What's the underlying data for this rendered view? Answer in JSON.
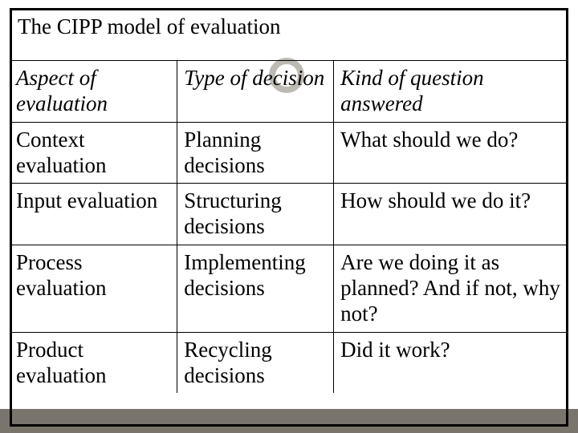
{
  "slide": {
    "title": "The CIPP model of evaluation",
    "title_fontsize": 27,
    "body_fontsize": 27,
    "text_color": "#000000",
    "background_color": "#ffffff",
    "bottom_strip_color": "#7a756c",
    "outer_border_color": "#000000",
    "outer_border_width": 3,
    "ring_color": "#bdbab4",
    "ring_stroke": 8,
    "col_widths_pct": [
      30,
      28,
      42
    ]
  },
  "table": {
    "type": "table",
    "columns": [
      "Aspect of evaluation",
      "Type of decision",
      "Kind of question answered"
    ],
    "rows": [
      [
        "Context evaluation",
        "Planning decisions",
        "What should we do?"
      ],
      [
        "Input evaluation",
        "Structuring decisions",
        "How should we do it?"
      ],
      [
        "Process evaluation",
        "Implementing decisions",
        "Are we doing it as planned? And if not, why not?"
      ],
      [
        "Product evaluation",
        "Recycling decisions",
        "Did it work?"
      ]
    ],
    "border_color": "#000000",
    "header_italic": true
  }
}
